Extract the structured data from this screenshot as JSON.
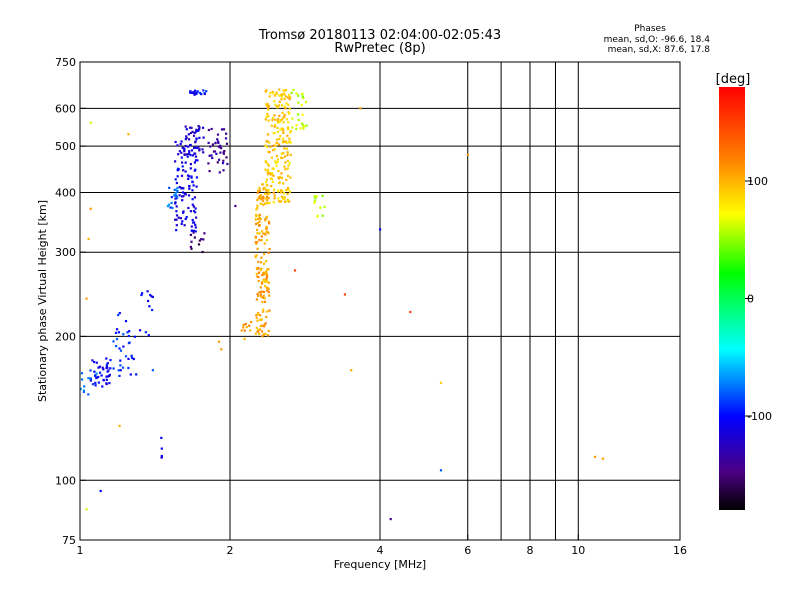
{
  "chart_data": {
    "type": "scatter",
    "title": "Tromsø 20180113 02:04:00-02:05:43",
    "subtitle": "RwPretec (8p)",
    "xlabel": "Frequency [MHz]",
    "ylabel": "Stationary phase Virtual Height [km]",
    "xscale": "log",
    "yscale": "log",
    "xlim": [
      1,
      16
    ],
    "ylim": [
      75,
      750
    ],
    "x_ticks": [
      1,
      2,
      4,
      6,
      8,
      10,
      16
    ],
    "y_ticks": [
      75,
      100,
      200,
      300,
      400,
      500,
      600,
      750
    ],
    "grid": true,
    "phases_box": {
      "title": "Phases",
      "line1": "mean, sd,O: -96.6, 18.4",
      "line2": "mean, sd,X:  87.6, 17.8"
    },
    "colorbar": {
      "label": "[deg]",
      "range": [
        -180,
        180
      ],
      "ticks": [
        100,
        0,
        -100
      ]
    },
    "series": [
      {
        "name": "O",
        "mean_phase": -96.6,
        "clusters": [
          {
            "f": [
              1.05,
              1.15
            ],
            "h": [
              155,
              180
            ],
            "n": 40,
            "phase": -105
          },
          {
            "f": [
              1.15,
              1.3
            ],
            "h": [
              165,
              225
            ],
            "n": 35,
            "phase": -95
          },
          {
            "f": [
              1.3,
              1.4
            ],
            "h": [
              200,
              255
            ],
            "n": 12,
            "phase": -105
          },
          {
            "f": [
              1.0,
              1.08
            ],
            "h": [
              150,
              172
            ],
            "n": 12,
            "phase": -75
          },
          {
            "f": [
              1.5,
              1.57
            ],
            "h": [
              370,
              420
            ],
            "n": 18,
            "phase": -80
          },
          {
            "f": [
              1.55,
              1.72
            ],
            "h": [
              330,
              520
            ],
            "n": 110,
            "phase": -110
          },
          {
            "f": [
              1.62,
              1.78
            ],
            "h": [
              480,
              560
            ],
            "n": 40,
            "phase": -118
          },
          {
            "f": [
              1.66,
              1.8
            ],
            "h": [
              640,
              655
            ],
            "n": 22,
            "phase": -102
          },
          {
            "f": [
              1.66,
              1.78
            ],
            "h": [
              300,
              330
            ],
            "n": 12,
            "phase": -150
          },
          {
            "f": [
              1.8,
              1.98
            ],
            "h": [
              440,
              550
            ],
            "n": 40,
            "phase": -140
          },
          {
            "f": [
              1.45,
              1.46
            ],
            "h": [
              103,
              125
            ],
            "n": 5,
            "phase": -110
          }
        ],
        "points": [
          {
            "f": 4.0,
            "h": 335,
            "phase": -105
          },
          {
            "f": 4.2,
            "h": 83,
            "phase": -140
          },
          {
            "f": 2.05,
            "h": 375,
            "phase": -140
          },
          {
            "f": 1.4,
            "h": 170,
            "phase": -80
          },
          {
            "f": 5.3,
            "h": 105,
            "phase": -80
          },
          {
            "f": 1.1,
            "h": 95,
            "phase": -100
          }
        ]
      },
      {
        "name": "X",
        "mean_phase": 87.6,
        "clusters": [
          {
            "f": [
              2.25,
              2.4
            ],
            "h": [
              200,
              420
            ],
            "n": 180,
            "phase": 105
          },
          {
            "f": [
              2.35,
              2.65
            ],
            "h": [
              380,
              660
            ],
            "n": 220,
            "phase": 92
          },
          {
            "f": [
              2.65,
              2.85
            ],
            "h": [
              540,
              660
            ],
            "n": 25,
            "phase": 60
          },
          {
            "f": [
              2.95,
              3.1
            ],
            "h": [
              345,
              395
            ],
            "n": 12,
            "phase": 60
          },
          {
            "f": [
              2.1,
              2.22
            ],
            "h": [
              195,
              215
            ],
            "n": 10,
            "phase": 110
          }
        ],
        "points": [
          {
            "f": 10.8,
            "h": 112,
            "phase": 108
          },
          {
            "f": 11.2,
            "h": 111,
            "phase": 108
          },
          {
            "f": 3.65,
            "h": 600,
            "phase": 110
          },
          {
            "f": 3.4,
            "h": 245,
            "phase": 150
          },
          {
            "f": 3.5,
            "h": 170,
            "phase": 105
          },
          {
            "f": 4.6,
            "h": 225,
            "phase": 150
          },
          {
            "f": 2.7,
            "h": 275,
            "phase": 150
          },
          {
            "f": 5.3,
            "h": 160,
            "phase": 90
          },
          {
            "f": 6.0,
            "h": 480,
            "phase": 110
          },
          {
            "f": 1.05,
            "h": 560,
            "phase": 60
          },
          {
            "f": 1.25,
            "h": 530,
            "phase": 100
          },
          {
            "f": 1.05,
            "h": 370,
            "phase": 110
          },
          {
            "f": 1.04,
            "h": 320,
            "phase": 100
          },
          {
            "f": 1.03,
            "h": 240,
            "phase": 110
          },
          {
            "f": 1.2,
            "h": 130,
            "phase": 100
          },
          {
            "f": 1.03,
            "h": 87,
            "phase": 60
          },
          {
            "f": 1.9,
            "h": 195,
            "phase": 110
          },
          {
            "f": 1.92,
            "h": 188,
            "phase": 110
          }
        ]
      }
    ]
  }
}
